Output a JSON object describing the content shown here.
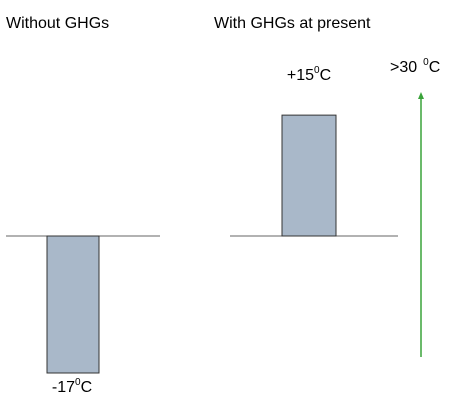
{
  "chart_data": [
    {
      "type": "bar",
      "title": "Without GHGs",
      "categories": [
        ""
      ],
      "values": [
        -17
      ],
      "value_label": {
        "number": "-17",
        "degree": "0",
        "unit": "C"
      },
      "baseline": 0,
      "colors": {
        "bar": "#a9b8c9",
        "bar_edge": "#333333",
        "axis": "#666666"
      }
    },
    {
      "type": "bar",
      "title": "With GHGs at present",
      "categories": [
        ""
      ],
      "values": [
        15
      ],
      "value_label": {
        "number": "+15",
        "degree": "0",
        "unit": "C"
      },
      "baseline": 0,
      "annotation": {
        "text_number": ">30",
        "text_degree": "0",
        "text_unit": "C",
        "arrow_value": 30,
        "arrow_color": "#3aa33a"
      },
      "colors": {
        "bar": "#a9b8c9",
        "bar_edge": "#333333",
        "axis": "#666666"
      }
    }
  ]
}
